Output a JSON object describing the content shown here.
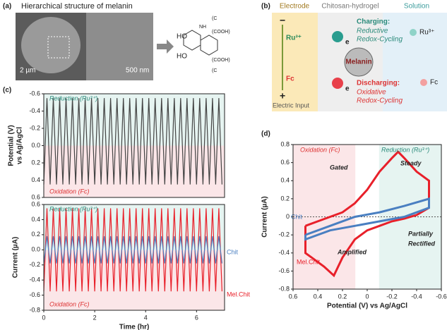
{
  "panel_a": {
    "label": "(a)",
    "title": "Hierarchical structure of melanin",
    "scale_1": "2 µm",
    "scale_2": "500 nm",
    "groups": [
      "HO",
      "HO",
      "(COOH)",
      "(COOH)",
      "NH",
      "(C",
      "(C"
    ]
  },
  "panel_b": {
    "label": "(b)",
    "headers": [
      "Electrode",
      "Chitosan-hydrogel",
      "Solution"
    ],
    "minus": "−",
    "plus": "+",
    "electrode_ru": "Ru³⁺",
    "electrode_fc": "Fc",
    "input": "Electric Input",
    "electron": "e",
    "melanin": "Melanin",
    "charging": "Charging:",
    "charging_desc": [
      "Reductive",
      "Redox-Cycling"
    ],
    "discharging": "Discharging:",
    "discharging_desc": [
      "Oxidative",
      "Redox-Cycling"
    ],
    "solution_ru": "Ru³⁺",
    "solution_fc": "Fc"
  },
  "chart_data": [
    {
      "type": "line",
      "label": "(c)",
      "ylabel": [
        "Potential (V)",
        "vs Ag/AgCl"
      ],
      "annotations": [
        "Reduction (Ru³⁺)",
        "Oxidation (Fc)"
      ],
      "y_inverted": true,
      "color": "#444444",
      "x": [
        0,
        0.125,
        0.25,
        0.375,
        0.5,
        0.625,
        0.75,
        0.875,
        1,
        1.125,
        1.25,
        1.375,
        1.5,
        1.625,
        1.75,
        1.875,
        2,
        2.125,
        2.25,
        2.375,
        2.5,
        2.625,
        2.75,
        2.875,
        3,
        3.125,
        3.25,
        3.375,
        3.5,
        3.625,
        3.75,
        3.875,
        4,
        4.125,
        4.25,
        4.375,
        4.5,
        4.625,
        4.75,
        4.875,
        5,
        5.125,
        5.25,
        5.375,
        5.5,
        5.625,
        5.75,
        5.875,
        6,
        6.125,
        6.25,
        6.375,
        6.5,
        6.625,
        6.75,
        6.875,
        7
      ],
      "values": [
        0.45,
        -0.55,
        0.45,
        -0.55,
        0.45,
        -0.55,
        0.45,
        -0.55,
        0.45,
        -0.55,
        0.45,
        -0.55,
        0.45,
        -0.55,
        0.45,
        -0.55,
        0.45,
        -0.55,
        0.45,
        -0.55,
        0.45,
        -0.55,
        0.45,
        -0.55,
        0.45,
        -0.55,
        0.45,
        -0.55,
        0.45,
        -0.55,
        0.45,
        -0.55,
        0.45,
        -0.55,
        0.45,
        -0.55,
        0.45,
        -0.55,
        0.45,
        -0.55,
        0.45,
        -0.55,
        0.45,
        -0.55,
        0.45,
        -0.55,
        0.45,
        -0.55,
        0.45,
        -0.55,
        0.45,
        -0.55,
        0.45,
        -0.55,
        0.45,
        -0.55,
        0.45
      ],
      "xlim": [
        0,
        7.1
      ],
      "ylim": [
        -0.6,
        0.6
      ],
      "yticks": [
        -0.6,
        -0.4,
        -0.2,
        {
          "value": 0,
          "label": "0.0"
        },
        0.2,
        0.4,
        0.6
      ]
    },
    {
      "type": "line",
      "ylabel": [
        "Current (µA)"
      ],
      "xlabel": "Time (hr)",
      "annotations": [
        "Reduction (Ru³⁺)",
        "Oxidation (Fc)"
      ],
      "x": [
        0,
        0.125,
        0.25,
        0.375,
        0.5,
        0.625,
        0.75,
        0.875,
        1,
        1.125,
        1.25,
        1.375,
        1.5,
        1.625,
        1.75,
        1.875,
        2,
        2.125,
        2.25,
        2.375,
        2.5,
        2.625,
        2.75,
        2.875,
        3,
        3.125,
        3.25,
        3.375,
        3.5,
        3.625,
        3.75,
        3.875,
        4,
        4.125,
        4.25,
        4.375,
        4.5,
        4.625,
        4.75,
        4.875,
        5,
        5.125,
        5.25,
        5.375,
        5.5,
        5.625,
        5.75,
        5.875,
        6,
        6.125,
        6.25,
        6.375,
        6.5,
        6.625,
        6.75,
        6.875,
        7
      ],
      "series": [
        {
          "name": "Mel.Chit",
          "color": "#e8202a",
          "values": [
            -0.55,
            0.55,
            -0.55,
            0.55,
            -0.55,
            0.55,
            -0.55,
            0.55,
            -0.55,
            0.55,
            -0.55,
            0.55,
            -0.55,
            0.55,
            -0.55,
            0.55,
            -0.55,
            0.55,
            -0.55,
            0.55,
            -0.55,
            0.55,
            -0.55,
            0.55,
            -0.55,
            0.55,
            -0.55,
            0.55,
            -0.55,
            0.55,
            -0.55,
            0.55,
            -0.55,
            0.55,
            -0.55,
            0.55,
            -0.55,
            0.55,
            -0.55,
            0.55,
            -0.55,
            0.55,
            -0.55,
            0.55,
            -0.55,
            0.55,
            -0.55,
            0.55,
            -0.55,
            0.55,
            -0.55,
            0.55,
            -0.55,
            0.55,
            -0.55,
            0.55,
            -0.55
          ]
        },
        {
          "name": "Chit",
          "color": "#4a7fc1",
          "values": [
            -0.18,
            0.18,
            -0.18,
            0.18,
            -0.18,
            0.18,
            -0.18,
            0.18,
            -0.18,
            0.18,
            -0.18,
            0.18,
            -0.18,
            0.18,
            -0.18,
            0.18,
            -0.18,
            0.18,
            -0.18,
            0.18,
            -0.18,
            0.18,
            -0.18,
            0.18,
            -0.18,
            0.18,
            -0.18,
            0.18,
            -0.18,
            0.18,
            -0.18,
            0.18,
            -0.18,
            0.18,
            -0.18,
            0.18,
            -0.18,
            0.18,
            -0.18,
            0.18,
            -0.18,
            0.18,
            -0.18,
            0.18,
            -0.18,
            0.18,
            -0.18,
            0.18,
            -0.18,
            0.18,
            -0.18,
            0.18,
            -0.18,
            0.18,
            -0.18,
            0.18,
            -0.18
          ]
        }
      ],
      "xlim": [
        0,
        7.1
      ],
      "xticks": [
        0,
        2,
        4,
        6
      ],
      "ylim": [
        -0.8,
        0.6
      ],
      "yticks": [
        -0.8,
        -0.6,
        -0.4,
        -0.2,
        {
          "value": 0,
          "label": "0.0"
        },
        0.2,
        0.4,
        0.6
      ]
    },
    {
      "type": "line",
      "label": "(d)",
      "xlabel": "Potential (V) vs Ag/AgCl",
      "ylabel": [
        "Current (µA)"
      ],
      "annotations": [
        "Oxidation (Fc)",
        "Reduction (Ru³⁺)",
        "Gated",
        "Steady",
        "Amplified",
        "Partially",
        "Rectified"
      ],
      "series": [
        {
          "name": "Mel.Chit",
          "color": "#e8202a",
          "x": [
            0.5,
            0.4,
            0.3,
            0.2,
            0.1,
            0,
            -0.1,
            -0.2,
            -0.25,
            -0.3,
            -0.4,
            -0.5,
            -0.5,
            -0.4,
            -0.3,
            -0.2,
            -0.1,
            0,
            0.1,
            0.2,
            0.27,
            0.35,
            0.45,
            0.5,
            0.5
          ],
          "values": [
            -0.1,
            -0.05,
            0,
            0.05,
            0.15,
            0.3,
            0.5,
            0.65,
            0.72,
            0.65,
            0.5,
            0.4,
            0.1,
            0.02,
            -0.02,
            -0.05,
            -0.1,
            -0.15,
            -0.25,
            -0.45,
            -0.65,
            -0.55,
            -0.45,
            -0.4,
            -0.1
          ]
        },
        {
          "name": "Chit",
          "color": "#4a7fc1",
          "x": [
            0.5,
            0.3,
            0.1,
            -0.1,
            -0.3,
            -0.5,
            -0.5,
            -0.3,
            -0.1,
            0.1,
            0.3,
            0.5,
            0.5
          ],
          "values": [
            -0.2,
            -0.1,
            0,
            0.05,
            0.12,
            0.2,
            0.1,
            0,
            -0.05,
            -0.1,
            -0.15,
            -0.25,
            -0.2
          ]
        }
      ],
      "xlim": [
        0.6,
        -0.6
      ],
      "xticks": [
        0.6,
        0.4,
        0.2,
        0,
        -0.2,
        -0.4,
        -0.6
      ],
      "ylim": [
        -0.8,
        0.8
      ],
      "yticks": [
        -0.8,
        -0.6,
        -0.4,
        -0.2,
        0,
        0.2,
        0.4,
        0.6,
        0.8
      ]
    }
  ]
}
